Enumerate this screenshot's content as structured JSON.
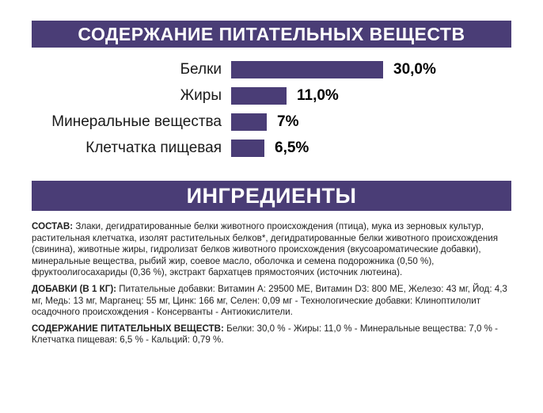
{
  "colors": {
    "accent_purple": "#4a3d76",
    "text": "#1f1f1f",
    "background": "#ffffff"
  },
  "header_nutrients": {
    "title": "СОДЕРЖАНИЕ ПИТАТЕЛЬНЫХ ВЕЩЕСТВ"
  },
  "chart_data": {
    "type": "bar",
    "orientation": "horizontal",
    "categories": [
      "Белки",
      "Жиры",
      "Минеральные вещества",
      "Клетчатка пищевая"
    ],
    "values": [
      30.0,
      11.0,
      7.0,
      6.5
    ],
    "value_labels": [
      "30,0%",
      "11,0%",
      "7%",
      "6,5%"
    ],
    "title": "СОДЕРЖАНИЕ ПИТАТЕЛЬНЫХ ВЕЩЕСТВ",
    "xlabel": "",
    "ylabel": "",
    "xlim": [
      0,
      30
    ],
    "grid": false,
    "legend": "none",
    "bar_color": "#4a3d76"
  },
  "header_ingredients": {
    "title": "ИНГРЕДИЕНТЫ"
  },
  "paragraphs": [
    {
      "label": "СОСТАВ:",
      "text": " Злаки, дегидратированные белки животного происхождения (птица), мука из зерновых культур, растительная клетчатка, изолят растительных белков*, дегидратированные белки животного происхождения (свинина), животные жиры, гидролизат белков животного происхождения (вкусоароматические добавки), минеральные вещества, рыбий жир, соевое масло, оболочка и семена подорожника (0,50 %), фруктоолигосахариды (0,36 %), экстракт бархатцев прямостоячих (источник лютеина)."
    },
    {
      "label": "ДОБАВКИ (В 1 КГ):",
      "text": " Питательные добавки: Витамин A: 29500 МЕ, Витамин D3: 800 МЕ, Железо: 43 мг, Йод: 4,3 мг, Медь: 13 мг, Марганец: 55 мг, Цинк: 166 мг, Селен: 0,09 мг - Технологические добавки: Клиноптилолит осадочного происхождения - Консерванты - Антиокислители."
    },
    {
      "label": "СОДЕРЖАНИЕ ПИТАТЕЛЬНЫХ ВЕЩЕСТВ:",
      "text": " Белки: 30,0 % - Жиры: 11,0 % - Минеральные вещества: 7,0 % - Клетчатка пищевая: 6,5 % - Кальций: 0,79 %."
    }
  ]
}
